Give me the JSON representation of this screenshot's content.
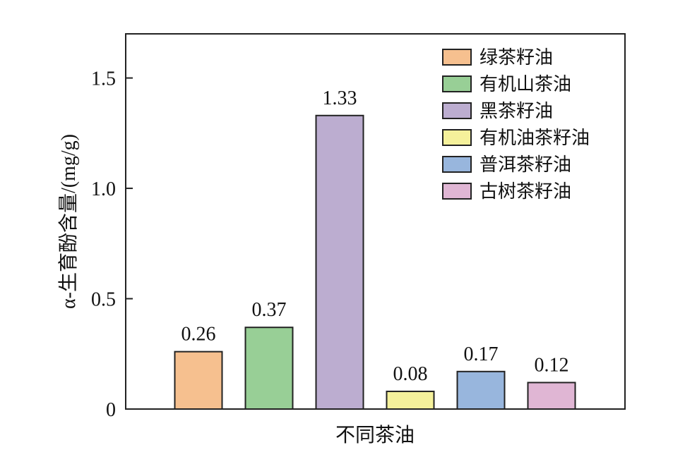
{
  "chart_data": {
    "type": "bar",
    "title": "",
    "xlabel": "不同茶油",
    "ylabel": "α-生育酚含量/(mg/g)",
    "ylim": [
      0,
      1.7
    ],
    "yticks": [
      0,
      0.5,
      1.0,
      1.5
    ],
    "ytick_labels": [
      "0",
      "0.5",
      "1.0",
      "1.5"
    ],
    "grid": false,
    "legend_position": "top-right",
    "categories": [
      "绿茶籽油",
      "有机山茶油",
      "黑茶籽油",
      "有机油茶籽油",
      "普洱茶籽油",
      "古树茶籽油"
    ],
    "values": [
      0.26,
      0.37,
      1.33,
      0.08,
      0.17,
      0.12
    ],
    "value_labels": [
      "0.26",
      "0.37",
      "1.33",
      "0.08",
      "0.17",
      "0.12"
    ],
    "colors": [
      "#f6c08f",
      "#98cf96",
      "#bcadd0",
      "#f5f19b",
      "#98b6dd",
      "#e0b6d4"
    ]
  }
}
